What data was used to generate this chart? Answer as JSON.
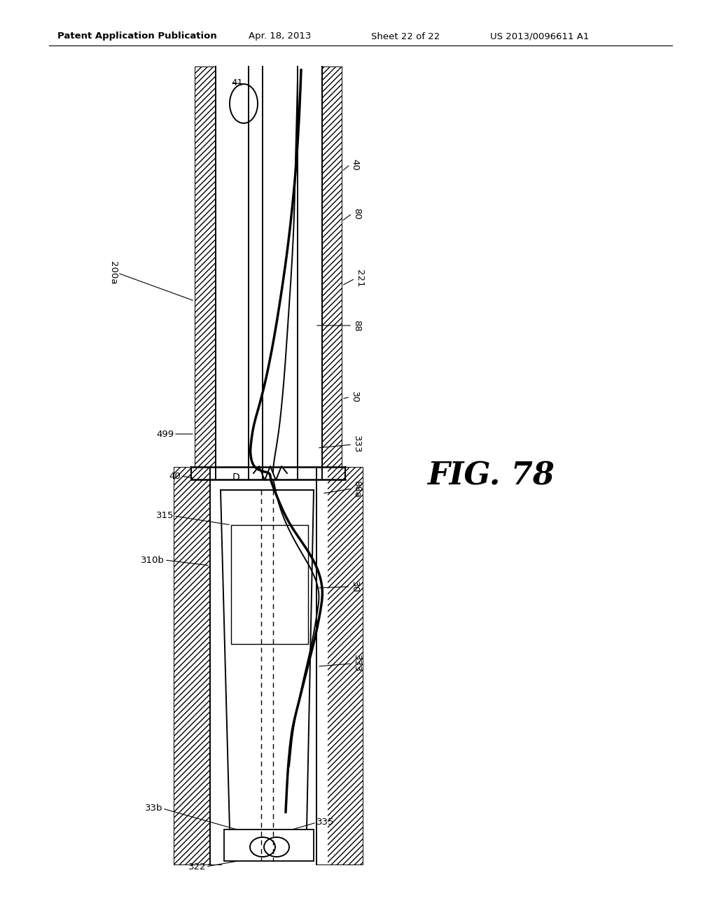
{
  "background_color": "#ffffff",
  "header_text": "Patent Application Publication",
  "header_date": "Apr. 18, 2013",
  "header_sheet": "Sheet 22 of 22",
  "header_patent": "US 2013/0096611 A1",
  "fig_label": "FIG. 78",
  "line_color": "#000000",
  "hatch_color": "#000000"
}
